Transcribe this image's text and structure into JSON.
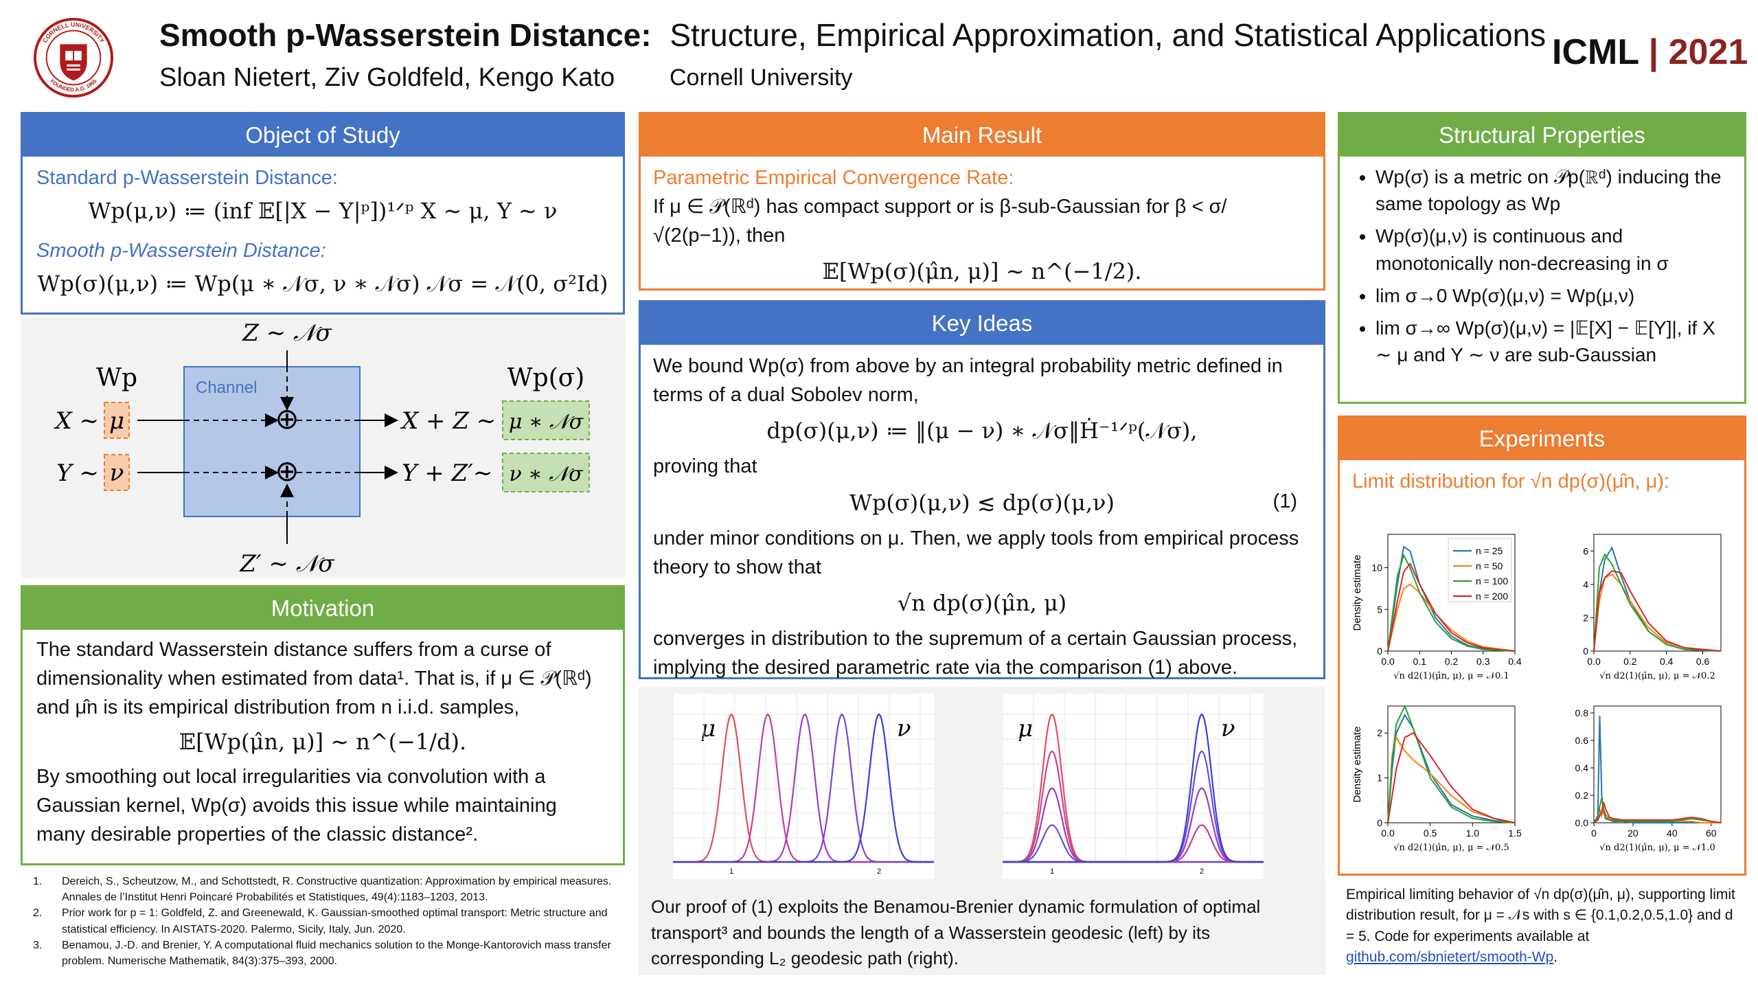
{
  "header": {
    "title_main": "Smooth p-Wasserstein Distance:",
    "title_sub": "Structure, Empirical Approximation, and Statistical Applications",
    "authors": "Sloan Nietert, Ziv Goldfeld, Kengo Kato",
    "affiliation": "Cornell University",
    "conf_name": "ICML",
    "conf_sep": "|",
    "conf_year": "2021",
    "logo_top": "CORNELL UNIVERSITY",
    "logo_bottom": "FOUNDED A.D. 1865"
  },
  "object": {
    "title": "Object of Study",
    "std_label": "Standard p-Wasserstein Distance:",
    "std_eq": "Wp(μ,ν) ≔ (inf 𝔼[|X − Y|ᵖ])¹ᐟᵖ     X ∼ μ, Y ∼ ν",
    "smooth_label": "Smooth p-Wasserstein Distance:",
    "smooth_eq": "Wp(σ)(μ,ν) ≔ Wp(μ ∗ 𝒩σ, ν ∗ 𝒩σ)   𝒩σ = 𝒩(0, σ²Id)"
  },
  "diagram": {
    "z_top": "Z ∼ 𝒩σ",
    "z_bottom": "Z′ ∼ 𝒩σ",
    "wp_left": "Wp",
    "wp_right": "Wp(σ)",
    "channel": "Channel",
    "x_left": "X ∼",
    "y_left": "Y ∼",
    "mu": "μ",
    "nu": "ν",
    "x_out": "X + Z ∼",
    "y_out": "Y + Z′∼",
    "mu_out": "μ ∗ 𝒩σ",
    "nu_out": "ν ∗ 𝒩σ",
    "oplus": "⊕"
  },
  "motivation": {
    "title": "Motivation",
    "p1": "The standard Wasserstein distance suffers from a curse of dimensionality when estimated from data¹. That is, if μ ∈ 𝒫(ℝᵈ) and μ̂n is its empirical distribution from n i.i.d. samples,",
    "eq": "𝔼[Wp(μ̂n, μ)] ∼ n^(−1/d).",
    "p2": "By smoothing out local irregularities via convolution with a Gaussian kernel, Wp(σ) avoids this issue while maintaining many desirable properties of the classic distance²."
  },
  "refs": [
    {
      "num": "1.",
      "text": "Dereich, S., Scheutzow, M., and Schottstedt, R. Constructive quantization: Approximation by empirical measures. Annales de l’Institut Henri Poincaré Probabilités et Statistiques, 49(4):1183–1203, 2013."
    },
    {
      "num": "2.",
      "text": "Prior work for p = 1: Goldfeld, Z. and Greenewald, K. Gaussian-smoothed optimal transport: Metric structure and statistical efficiency. In AISTATS-2020. Palermo, Sicily, Italy, Jun. 2020."
    },
    {
      "num": "3.",
      "text": "Benamou, J.-D. and Brenier, Y. A computational fluid mechanics solution to the Monge-Kantorovich mass transfer problem. Numerische Mathematik, 84(3):375–393, 2000."
    }
  ],
  "main": {
    "title": "Main Result",
    "label": "Parametric Empirical Convergence Rate:",
    "text": "If μ ∈ 𝒫(ℝᵈ) has compact support or is β-sub-Gaussian for β < σ/√(2(p−1)), then",
    "eq": "𝔼[Wp(σ)(μ̂n, μ)] ∼ n^(−1/2)."
  },
  "key": {
    "title": "Key Ideas",
    "p1": "We bound Wp(σ) from above by an integral probability metric defined in terms of a dual Sobolev norm,",
    "eq1": "dp(σ)(μ,ν) ≔ ‖(μ − ν) ∗ 𝒩σ‖Ḣ⁻¹ᐟᵖ(𝒩σ),",
    "p2": "proving that",
    "eq2": "Wp(σ)(μ,ν) ≲ dp(σ)(μ,ν)",
    "eq2_num": "(1)",
    "p3": "under minor conditions on μ. Then, we apply tools from empirical process theory to show that",
    "eq3": "√n dp(σ)(μ̂n, μ)",
    "p4": "converges in distribution to the supremum of a certain Gaussian process, implying the desired parametric rate via the comparison (1) above."
  },
  "geodesic": {
    "mu": "μ",
    "nu": "ν",
    "tick1": "1",
    "tick2": "2",
    "caption": "Our proof of (1) exploits the Benamou-Brenier dynamic formulation of optimal transport³ and bounds the length of a Wasserstein geodesic (left) by its corresponding L₂ geodesic path (right)."
  },
  "structural": {
    "title": "Structural Properties",
    "items": [
      "Wp(σ) is a metric on 𝒫p(ℝᵈ) inducing the same topology as Wp",
      "Wp(σ)(μ,ν) is continuous and monotonically non-decreasing in σ",
      "lim σ→0 Wp(σ)(μ,ν) = Wp(μ,ν)",
      "lim σ→∞ Wp(σ)(μ,ν) = |𝔼[X] − 𝔼[Y]|, if X ∼ μ and Y ∼ ν are sub-Gaussian"
    ]
  },
  "experiments": {
    "title": "Experiments",
    "label": "Limit distribution for √n dp(σ)(μ̂n, μ):",
    "ylabel": "Density estimate",
    "caption_pre": "Empirical limiting behavior of √n dp(σ)(μ̂n, μ), supporting limit distribution result, for μ = 𝒩s with s ∈ {0.1,0.2,0.5,1.0} and d = 5. Code for experiments available at ",
    "link": "github.com/sbnietert/smooth-Wp",
    "caption_post": ".",
    "legend": [
      "n = 25",
      "n = 50",
      "n = 100",
      "n = 200"
    ],
    "colors": [
      "#1f77b4",
      "#ff7f0e",
      "#2ca02c",
      "#d62728"
    ]
  },
  "chart_data": [
    {
      "type": "line",
      "xlabel": "√n d2(1)(μ̂n, μ),  μ = 𝒩0.1",
      "ylabel": "Density estimate",
      "xlim": [
        0,
        0.4
      ],
      "ylim": [
        0,
        14
      ],
      "xticks": [
        "0.0",
        "0.1",
        "0.2",
        "0.3",
        "0.4"
      ],
      "yticks": [
        "0",
        "5",
        "10"
      ],
      "x": [
        0,
        0.03,
        0.05,
        0.07,
        0.1,
        0.15,
        0.2,
        0.25,
        0.3,
        0.4
      ],
      "series": [
        {
          "name": "n = 25",
          "values": [
            0,
            8,
            12.5,
            12,
            8,
            4,
            1.8,
            0.7,
            0.3,
            0
          ]
        },
        {
          "name": "n = 50",
          "values": [
            0,
            5,
            7.5,
            8,
            7,
            4.5,
            2.5,
            1.2,
            0.5,
            0
          ]
        },
        {
          "name": "n = 100",
          "values": [
            0,
            9,
            11.5,
            10,
            7,
            3.5,
            1.5,
            0.6,
            0.2,
            0
          ]
        },
        {
          "name": "n = 200",
          "values": [
            0,
            6,
            9.5,
            10.5,
            8,
            4.5,
            2.2,
            1,
            0.4,
            0
          ]
        }
      ]
    },
    {
      "type": "line",
      "xlabel": "√n d2(1)(μ̂n, μ),  μ = 𝒩0.2",
      "ylabel": "",
      "xlim": [
        0,
        0.7
      ],
      "ylim": [
        0,
        7
      ],
      "xticks": [
        "0.0",
        "0.2",
        "0.4",
        "0.6"
      ],
      "yticks": [
        "0",
        "2",
        "4",
        "6"
      ],
      "x": [
        0,
        0.03,
        0.06,
        0.1,
        0.15,
        0.2,
        0.3,
        0.4,
        0.5,
        0.7
      ],
      "series": [
        {
          "name": "n = 25",
          "values": [
            0,
            3.5,
            5.5,
            6.2,
            4.5,
            3,
            1.2,
            0.4,
            0.1,
            0
          ]
        },
        {
          "name": "n = 50",
          "values": [
            0,
            3,
            4.4,
            4.6,
            4,
            3,
            1.4,
            0.5,
            0.2,
            0
          ]
        },
        {
          "name": "n = 100",
          "values": [
            0,
            5,
            5.8,
            5.2,
            4,
            2.8,
            1.2,
            0.4,
            0.1,
            0
          ]
        },
        {
          "name": "n = 200",
          "values": [
            0,
            3.5,
            4.4,
            4.8,
            4.7,
            3.6,
            1.7,
            0.6,
            0.2,
            0
          ]
        }
      ]
    },
    {
      "type": "line",
      "xlabel": "√n d2(1)(μ̂n, μ),  μ = 𝒩0.5",
      "ylabel": "Density estimate",
      "xlim": [
        0,
        1.5
      ],
      "ylim": [
        0,
        2.6
      ],
      "xticks": [
        "0.0",
        "0.5",
        "1.0",
        "1.5"
      ],
      "yticks": [
        "0",
        "1",
        "2"
      ],
      "x": [
        0,
        0.05,
        0.1,
        0.2,
        0.3,
        0.5,
        0.75,
        1.0,
        1.25,
        1.5
      ],
      "series": [
        {
          "name": "n = 25",
          "values": [
            0,
            1.2,
            2,
            2.4,
            2.1,
            1.1,
            0.4,
            0.15,
            0.05,
            0
          ]
        },
        {
          "name": "n = 50",
          "values": [
            0,
            1.5,
            1.9,
            1.6,
            1.4,
            1.1,
            0.6,
            0.25,
            0.1,
            0
          ]
        },
        {
          "name": "n = 100",
          "values": [
            0,
            1.4,
            2.2,
            2.6,
            2.1,
            1,
            0.35,
            0.1,
            0.03,
            0
          ]
        },
        {
          "name": "n = 200",
          "values": [
            0,
            0.6,
            1.2,
            1.9,
            2,
            1.5,
            0.8,
            0.3,
            0.1,
            0
          ]
        }
      ]
    },
    {
      "type": "line",
      "xlabel": "√n d2(1)(μ̂n, μ),  μ = 𝒩1.0",
      "ylabel": "",
      "xlim": [
        0,
        65
      ],
      "ylim": [
        0,
        0.85
      ],
      "xticks": [
        "0",
        "20",
        "40",
        "60"
      ],
      "yticks": [
        "0.0",
        "0.2",
        "0.4",
        "0.6",
        "0.8"
      ],
      "x": [
        0,
        2,
        3,
        4,
        5,
        6,
        8,
        10,
        15,
        20,
        30,
        40,
        50,
        55,
        60,
        65
      ],
      "series": [
        {
          "name": "n = 25",
          "values": [
            0,
            0.05,
            0.78,
            0.2,
            0.08,
            0.03,
            0.02,
            0.01,
            0.01,
            0,
            0,
            0,
            0,
            0,
            0,
            0
          ]
        },
        {
          "name": "n = 50",
          "values": [
            0,
            0.02,
            0.1,
            0.05,
            0.1,
            0.06,
            0.03,
            0.02,
            0.02,
            0.01,
            0.01,
            0.01,
            0.01,
            0,
            0,
            0
          ]
        },
        {
          "name": "n = 100",
          "values": [
            0,
            0.03,
            0.12,
            0.18,
            0.1,
            0.04,
            0.02,
            0.02,
            0.01,
            0.01,
            0.01,
            0.01,
            0.03,
            0.02,
            0.01,
            0
          ]
        },
        {
          "name": "n = 200",
          "values": [
            0,
            0.02,
            0.05,
            0.08,
            0.15,
            0.1,
            0.04,
            0.03,
            0.02,
            0.02,
            0.02,
            0.02,
            0.04,
            0.03,
            0.01,
            0
          ]
        }
      ]
    }
  ]
}
